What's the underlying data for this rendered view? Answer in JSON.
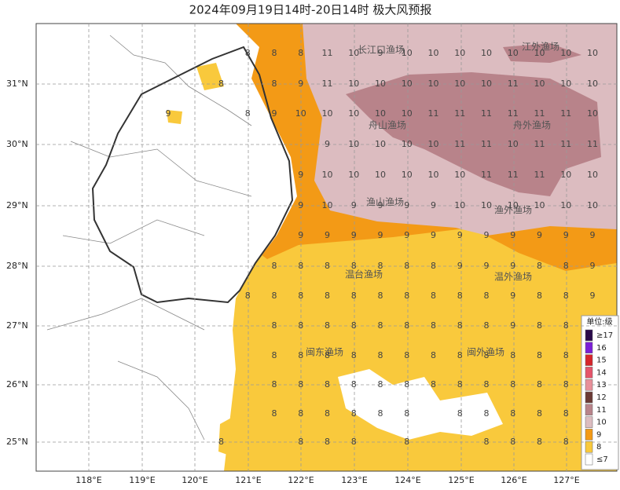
{
  "header": {
    "title": "2024年09月19日14时-20日14时 极大风预报"
  },
  "lat_labels": [
    "31°N",
    "30°N",
    "29°N",
    "28°N",
    "27°N",
    "26°N",
    "25°N"
  ],
  "lon_labels": [
    "118°E",
    "119°E",
    "120°E",
    "121°E",
    "122°E",
    "123°E",
    "124°E",
    "125°E",
    "126°E",
    "127°E"
  ],
  "fishery_labels": [
    "长江口渔场",
    "江外渔场",
    "舟山渔场",
    "舟外渔场",
    "渔山渔场",
    "渔外渔场",
    "温台渔场",
    "温外渔场",
    "闽东渔场",
    "闽外渔场"
  ],
  "grid": {
    "rows": [
      [
        null,
        null,
        null,
        8,
        8,
        8,
        11,
        10,
        9,
        10,
        10,
        10,
        10,
        10,
        10,
        10,
        10
      ],
      [
        null,
        null,
        8,
        null,
        8,
        9,
        11,
        10,
        10,
        10,
        10,
        10,
        10,
        11,
        10,
        10,
        10
      ],
      [
        9,
        null,
        null,
        8,
        9,
        10,
        10,
        10,
        10,
        10,
        11,
        11,
        11,
        11,
        11,
        11,
        10
      ],
      [
        null,
        null,
        null,
        null,
        null,
        null,
        9,
        10,
        10,
        10,
        10,
        11,
        11,
        10,
        11,
        11,
        11
      ],
      [
        null,
        null,
        null,
        null,
        null,
        9,
        10,
        10,
        10,
        10,
        10,
        10,
        11,
        11,
        11,
        10,
        10
      ],
      [
        null,
        null,
        null,
        null,
        null,
        9,
        10,
        9,
        9,
        9,
        9,
        10,
        10,
        10,
        10,
        10,
        10
      ],
      [
        null,
        null,
        null,
        null,
        null,
        9,
        9,
        9,
        9,
        9,
        9,
        9,
        9,
        9,
        9,
        9,
        9
      ],
      [
        null,
        null,
        null,
        null,
        8,
        8,
        8,
        8,
        8,
        8,
        8,
        9,
        9,
        9,
        8,
        8,
        9
      ],
      [
        null,
        null,
        null,
        8,
        8,
        8,
        8,
        8,
        8,
        8,
        8,
        8,
        8,
        9,
        8,
        8,
        9
      ],
      [
        null,
        null,
        null,
        null,
        8,
        8,
        8,
        8,
        8,
        8,
        8,
        8,
        8,
        9,
        8,
        8,
        null
      ],
      [
        null,
        null,
        null,
        null,
        8,
        8,
        8,
        8,
        8,
        8,
        8,
        8,
        8,
        8,
        8,
        8,
        null
      ],
      [
        null,
        null,
        null,
        null,
        8,
        8,
        8,
        8,
        8,
        8,
        8,
        8,
        8,
        8,
        8,
        8,
        null
      ],
      [
        null,
        null,
        null,
        null,
        8,
        8,
        8,
        8,
        8,
        8,
        null,
        8,
        8,
        8,
        8,
        8,
        null
      ],
      [
        null,
        null,
        8,
        null,
        null,
        8,
        8,
        8,
        null,
        8,
        null,
        null,
        8,
        8,
        8,
        8,
        null
      ]
    ]
  },
  "legend": {
    "title": "单位:级",
    "items": [
      {
        "label": "≥17",
        "color": "#2a0a4a"
      },
      {
        "label": "16",
        "color": "#7b1fd6"
      },
      {
        "label": "15",
        "color": "#d6252b"
      },
      {
        "label": "14",
        "color": "#e5546a"
      },
      {
        "label": "13",
        "color": "#e8909a"
      },
      {
        "label": "12",
        "color": "#6b3a35"
      },
      {
        "label": "11",
        "color": "#b8838a"
      },
      {
        "label": "10",
        "color": "#dcbcc0"
      },
      {
        "label": "9",
        "color": "#f39a16"
      },
      {
        "label": "8",
        "color": "#f9c93c"
      },
      {
        "label": "≤7",
        "color": "#ffffff"
      }
    ]
  }
}
